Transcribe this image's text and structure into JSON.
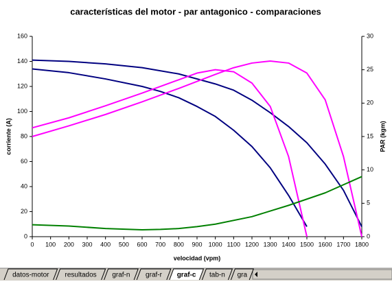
{
  "chart_data": {
    "type": "line",
    "title": "características del motor - par antagonico - comparaciones",
    "xlabel": "velocidad (vpm)",
    "ylabel": "corriente (A)",
    "y2label": "PAR (kgm)",
    "xlim": [
      0,
      1800
    ],
    "xticks": [
      0,
      100,
      200,
      300,
      400,
      500,
      600,
      700,
      800,
      900,
      1000,
      1100,
      1200,
      1300,
      1400,
      1500,
      1600,
      1700,
      1800
    ],
    "ylim": [
      0,
      160
    ],
    "yticks": [
      0,
      20,
      40,
      60,
      80,
      100,
      120,
      140,
      160
    ],
    "y2lim": [
      0,
      30
    ],
    "y2ticks": [
      0,
      5,
      10,
      15,
      20,
      25,
      30
    ],
    "grid": false,
    "series": [
      {
        "color": "#000080",
        "x": [
          0,
          200,
          400,
          600,
          700,
          800,
          900,
          1000,
          1100,
          1200,
          1300,
          1400,
          1500
        ],
        "values": [
          134,
          131,
          126,
          120,
          116,
          111,
          104,
          96,
          85,
          72,
          55,
          33,
          8
        ]
      },
      {
        "color": "#000080",
        "x": [
          0,
          200,
          400,
          600,
          800,
          1000,
          1100,
          1200,
          1300,
          1400,
          1500,
          1600,
          1700,
          1800
        ],
        "values": [
          141,
          140,
          138,
          135,
          130,
          122,
          117,
          109,
          99,
          88,
          75,
          58,
          37,
          8
        ]
      },
      {
        "color": "#ff00ff",
        "axis": "y2",
        "x": [
          0,
          200,
          400,
          600,
          800,
          900,
          1000,
          1100,
          1200,
          1300,
          1400,
          1500
        ],
        "values": [
          16.3,
          17.8,
          19.6,
          21.5,
          23.5,
          24.5,
          25,
          24.7,
          23,
          19.5,
          12,
          0
        ]
      },
      {
        "color": "#ff00ff",
        "axis": "y2",
        "x": [
          0,
          200,
          400,
          600,
          800,
          1000,
          1100,
          1200,
          1300,
          1400,
          1500,
          1600,
          1700,
          1800
        ],
        "values": [
          15,
          16.6,
          18.3,
          20.2,
          22.2,
          24.3,
          25.3,
          26,
          26.3,
          26,
          24.5,
          20.5,
          12,
          0
        ]
      },
      {
        "color": "#008000",
        "x": [
          0,
          200,
          400,
          600,
          700,
          800,
          900,
          1000,
          1200,
          1400,
          1600,
          1800
        ],
        "values": [
          9.5,
          8.5,
          6.5,
          5.5,
          5.8,
          6.5,
          8,
          10,
          16,
          25,
          35,
          48
        ]
      }
    ]
  },
  "sheet_tabs": {
    "tabs": [
      "datos-motor",
      "resultados",
      "graf-n",
      "graf-r",
      "graf-c",
      "tab-n",
      "gra"
    ],
    "active": 4
  }
}
